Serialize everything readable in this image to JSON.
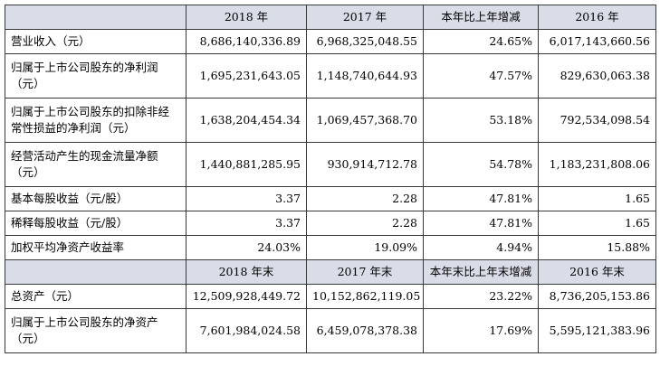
{
  "header1": [
    "2018 年",
    "2017 年",
    "本年比上年增减",
    "2016 年"
  ],
  "rows1": [
    {
      "label": "营业收入（元）",
      "values": [
        "8,686,140,336.89",
        "6,968,325,048.55",
        "24.65%",
        "6,017,143,660.56"
      ]
    },
    {
      "label": "归属于上市公司股东的净利润（元）",
      "values": [
        "1,695,231,643.05",
        "1,148,740,644.93",
        "47.57%",
        "829,630,063.38"
      ]
    },
    {
      "label": "归属于上市公司股东的扣除非经常性损益的净利润（元）",
      "values": [
        "1,638,204,454.34",
        "1,069,457,368.70",
        "53.18%",
        "792,534,098.54"
      ]
    },
    {
      "label": "经营活动产生的现金流量净额（元）",
      "values": [
        "1,440,881,285.95",
        "930,914,712.78",
        "54.78%",
        "1,183,231,808.06"
      ]
    },
    {
      "label": "基本每股收益（元/股）",
      "values": [
        "3.37",
        "2.28",
        "47.81%",
        "1.65"
      ]
    },
    {
      "label": "稀释每股收益（元/股）",
      "values": [
        "3.37",
        "2.28",
        "47.81%",
        "1.65"
      ]
    },
    {
      "label": "加权平均净资产收益率",
      "values": [
        "24.03%",
        "19.09%",
        "4.94%",
        "15.88%"
      ]
    }
  ],
  "header2": [
    "2018 年末",
    "2017 年末",
    "本年末比上年末增减",
    "2016 年末"
  ],
  "rows2": [
    {
      "label": "总资产（元）",
      "values": [
        "12,509,928,449.72",
        "10,152,862,119.05",
        "23.22%",
        "8,736,205,153.86"
      ]
    },
    {
      "label": "归属于上市公司股东的净资产（元）",
      "values": [
        "7,601,984,024.58",
        "6,459,078,378.38",
        "17.69%",
        "5,595,121,383.96"
      ]
    }
  ]
}
